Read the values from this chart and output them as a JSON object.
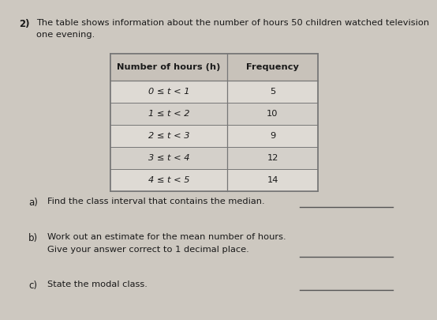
{
  "question_number": "2)",
  "intro_text_line1": "The table shows information about the number of hours 50 children watched television",
  "intro_text_line2": "one evening.",
  "col1_header": "Number of hours (h)",
  "col2_header": "Frequency",
  "rows": [
    {
      "interval": "0 ≤ t < 1",
      "frequency": "5"
    },
    {
      "interval": "1 ≤ t < 2",
      "frequency": "10"
    },
    {
      "interval": "2 ≤ t < 3",
      "frequency": "9"
    },
    {
      "interval": "3 ≤ t < 4",
      "frequency": "12"
    },
    {
      "interval": "4 ≤ t < 5",
      "frequency": "14"
    }
  ],
  "part_a_label": "a)",
  "part_a_text": "Find the class interval that contains the median.",
  "part_b_label": "b)",
  "part_b_text_line1": "Work out an estimate for the mean number of hours.",
  "part_b_text_line2": "Give your answer correct to 1 decimal place.",
  "part_c_label": "c)",
  "part_c_text": "State the modal class.",
  "bg_color": "#cdc8c0",
  "table_line_color": "#777777",
  "text_color": "#1a1a1a",
  "answer_line_color": "#555555",
  "table_header_bg": "#c8c2ba",
  "table_row_bg1": "#dedad4",
  "table_row_bg2": "#d4d0ca"
}
